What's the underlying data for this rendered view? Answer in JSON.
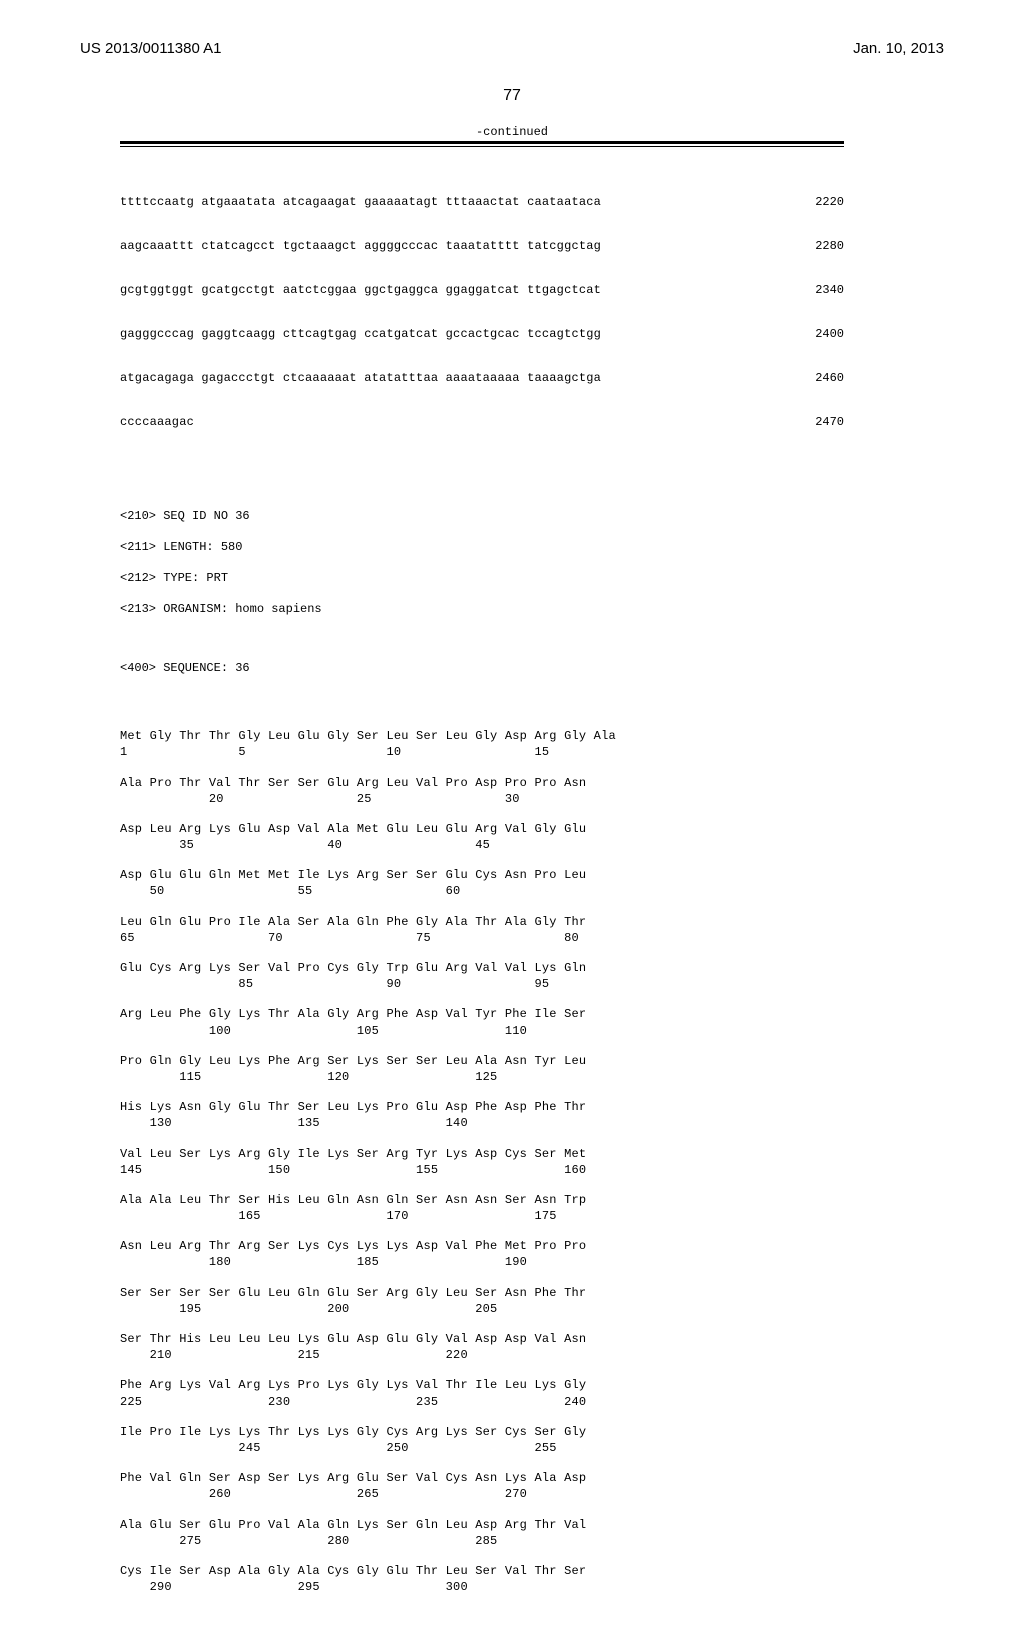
{
  "header": {
    "pub_number": "US 2013/0011380 A1",
    "pub_date": "Jan. 10, 2013"
  },
  "page_number": "77",
  "continued_label": "-continued",
  "nucleotide_lines": [
    {
      "seq": "ttttccaatg atgaaatata atcagaagat gaaaaatagt tttaaactat caataataca",
      "pos": "2220"
    },
    {
      "seq": "aagcaaattt ctatcagcct tgctaaagct aggggcccac taaatatttt tatcggctag",
      "pos": "2280"
    },
    {
      "seq": "gcgtggtggt gcatgcctgt aatctcggaa ggctgaggca ggaggatcat ttgagctcat",
      "pos": "2340"
    },
    {
      "seq": "gagggcccag gaggtcaagg cttcagtgag ccatgatcat gccactgcac tccagtctgg",
      "pos": "2400"
    },
    {
      "seq": "atgacagaga gagaccctgt ctcaaaaaat atatatttaa aaaataaaaa taaaagctga",
      "pos": "2460"
    },
    {
      "seq": "ccccaaagac",
      "pos": "2470"
    }
  ],
  "seq_meta": {
    "id": "<210> SEQ ID NO 36",
    "length": "<211> LENGTH: 580",
    "type": "<212> TYPE: PRT",
    "organism": "<213> ORGANISM: homo sapiens",
    "sequence": "<400> SEQUENCE: 36"
  },
  "protein_blocks": [
    {
      "aa": "Met Gly Thr Thr Gly Leu Glu Gly Ser Leu Ser Leu Gly Asp Arg Gly Ala",
      "num": "1               5                   10                  15"
    },
    {
      "aa": "Ala Pro Thr Val Thr Ser Ser Glu Arg Leu Val Pro Asp Pro Pro Asn",
      "num": "            20                  25                  30"
    },
    {
      "aa": "Asp Leu Arg Lys Glu Asp Val Ala Met Glu Leu Glu Arg Val Gly Glu",
      "num": "        35                  40                  45"
    },
    {
      "aa": "Asp Glu Glu Gln Met Met Ile Lys Arg Ser Ser Glu Cys Asn Pro Leu",
      "num": "    50                  55                  60"
    },
    {
      "aa": "Leu Gln Glu Pro Ile Ala Ser Ala Gln Phe Gly Ala Thr Ala Gly Thr",
      "num": "65                  70                  75                  80"
    },
    {
      "aa": "Glu Cys Arg Lys Ser Val Pro Cys Gly Trp Glu Arg Val Val Lys Gln",
      "num": "                85                  90                  95"
    },
    {
      "aa": "Arg Leu Phe Gly Lys Thr Ala Gly Arg Phe Asp Val Tyr Phe Ile Ser",
      "num": "            100                 105                 110"
    },
    {
      "aa": "Pro Gln Gly Leu Lys Phe Arg Ser Lys Ser Ser Leu Ala Asn Tyr Leu",
      "num": "        115                 120                 125"
    },
    {
      "aa": "His Lys Asn Gly Glu Thr Ser Leu Lys Pro Glu Asp Phe Asp Phe Thr",
      "num": "    130                 135                 140"
    },
    {
      "aa": "Val Leu Ser Lys Arg Gly Ile Lys Ser Arg Tyr Lys Asp Cys Ser Met",
      "num": "145                 150                 155                 160"
    },
    {
      "aa": "Ala Ala Leu Thr Ser His Leu Gln Asn Gln Ser Asn Asn Ser Asn Trp",
      "num": "                165                 170                 175"
    },
    {
      "aa": "Asn Leu Arg Thr Arg Ser Lys Cys Lys Lys Asp Val Phe Met Pro Pro",
      "num": "            180                 185                 190"
    },
    {
      "aa": "Ser Ser Ser Ser Glu Leu Gln Glu Ser Arg Gly Leu Ser Asn Phe Thr",
      "num": "        195                 200                 205"
    },
    {
      "aa": "Ser Thr His Leu Leu Leu Lys Glu Asp Glu Gly Val Asp Asp Val Asn",
      "num": "    210                 215                 220"
    },
    {
      "aa": "Phe Arg Lys Val Arg Lys Pro Lys Gly Lys Val Thr Ile Leu Lys Gly",
      "num": "225                 230                 235                 240"
    },
    {
      "aa": "Ile Pro Ile Lys Lys Thr Lys Lys Gly Cys Arg Lys Ser Cys Ser Gly",
      "num": "                245                 250                 255"
    },
    {
      "aa": "Phe Val Gln Ser Asp Ser Lys Arg Glu Ser Val Cys Asn Lys Ala Asp",
      "num": "            260                 265                 270"
    },
    {
      "aa": "Ala Glu Ser Glu Pro Val Ala Gln Lys Ser Gln Leu Asp Arg Thr Val",
      "num": "        275                 280                 285"
    },
    {
      "aa": "Cys Ile Ser Asp Ala Gly Ala Cys Gly Glu Thr Leu Ser Val Thr Ser",
      "num": "    290                 295                 300"
    }
  ]
}
